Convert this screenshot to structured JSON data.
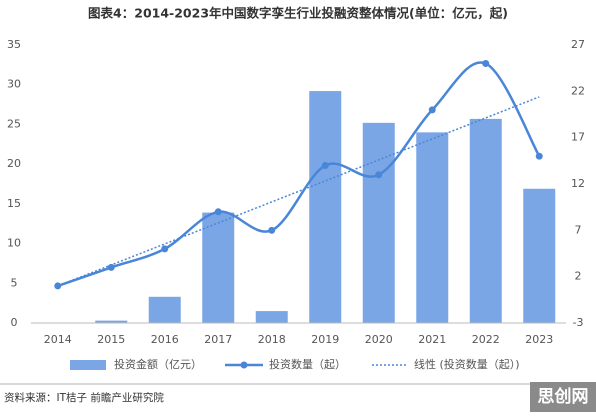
{
  "chart_data": {
    "type": "bar-line",
    "title": "图表4：2014-2023年中国数字孪生行业投融资整体情况(单位：亿元，起)",
    "categories": [
      "2014",
      "2015",
      "2016",
      "2017",
      "2018",
      "2019",
      "2020",
      "2021",
      "2022",
      "2023"
    ],
    "series": [
      {
        "name": "投资金额（亿元）",
        "type": "bar",
        "color": "#7aa6e6",
        "values": [
          0,
          0.3,
          3.3,
          13.9,
          1.5,
          29.2,
          25.2,
          24,
          25.7,
          16.9
        ]
      },
      {
        "name": "投资数量（起）",
        "type": "line",
        "axis": "y2",
        "color": "#4a86d8",
        "values": [
          1,
          3,
          5,
          9,
          7,
          14,
          13,
          20,
          25,
          15
        ]
      }
    ],
    "trendline": {
      "name": "线性 (投资数量（起）)",
      "color": "#4a86d8"
    },
    "ylim": [
      0,
      35
    ],
    "yticks": [
      0,
      5,
      10,
      15,
      20,
      25,
      30,
      35
    ],
    "y2lim": [
      -3,
      27
    ],
    "y2ticks": [
      -3,
      2,
      7,
      12,
      17,
      22,
      27
    ],
    "grid": false
  },
  "footer": {
    "source": "资料来源：IT桔子 前瞻产业研究院",
    "logo": "思创网"
  }
}
